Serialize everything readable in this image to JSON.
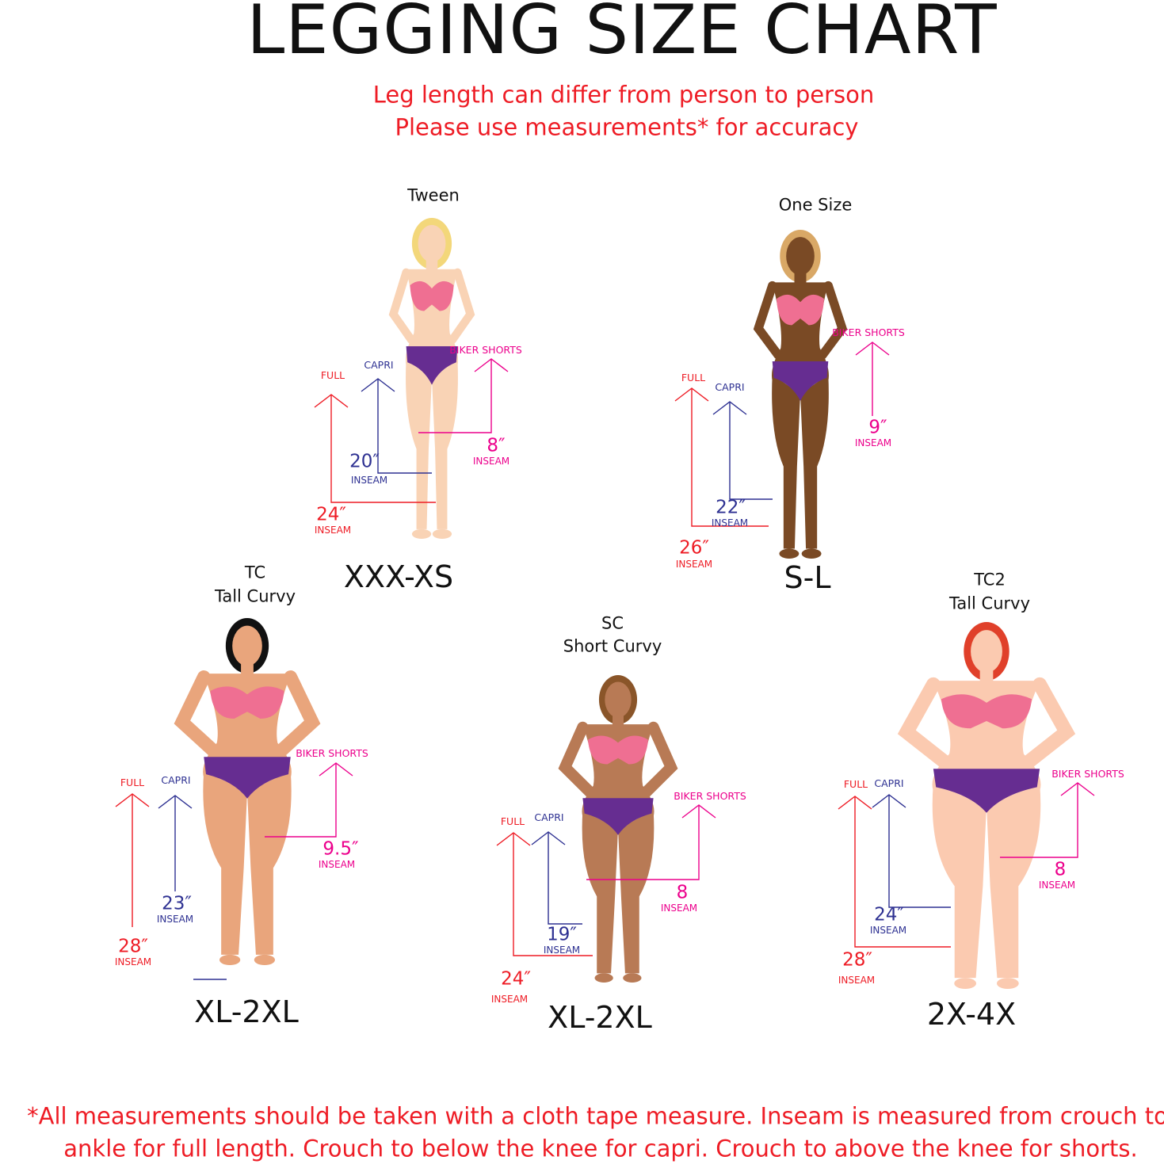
{
  "title": "LEGGING  SIZE CHART",
  "subtitle": [
    "Leg length can differ from person to person",
    "Please use measurements* for accuracy"
  ],
  "footnote": [
    "*All measurements should be taken with a cloth tape measure. Inseam is measured from crouch to",
    "ankle for full length. Crouch to below the knee for capri. Crouch to above the knee for shorts."
  ],
  "colors": {
    "full": "#ee1c25",
    "capri": "#2e3192",
    "shorts": "#ec008c",
    "bra": "#ef6f92",
    "briefs": "#662d91"
  },
  "panels": [
    {
      "title": [
        "Tween"
      ],
      "size": "XXX-XS",
      "skin": "#f9d3b5",
      "hair": "#f3d77a",
      "full": {
        "label": "FULL",
        "value": "24″",
        "unit": "INSEAM"
      },
      "capri": {
        "label": "CAPRI",
        "value": "20″",
        "unit": "INSEAM"
      },
      "shorts": {
        "label": "BIKER SHORTS",
        "value": "8″",
        "unit": "INSEAM"
      }
    },
    {
      "title": [
        "One Size"
      ],
      "size": "S-L",
      "skin": "#7a4a25",
      "hair": "#d9a866",
      "full": {
        "label": "FULL",
        "value": "26″",
        "unit": "INSEAM"
      },
      "capri": {
        "label": "CAPRI",
        "value": "22″",
        "unit": "INSEAM"
      },
      "shorts": {
        "label": "BIKER SHORTS",
        "value": "9″",
        "unit": "INSEAM"
      }
    },
    {
      "title": [
        "TC",
        "Tall Curvy"
      ],
      "size": "XL-2XL",
      "skin": "#e9a57c",
      "hair": "#111111",
      "full": {
        "label": "FULL",
        "value": "28″",
        "unit": "INSEAM"
      },
      "capri": {
        "label": "CAPRI",
        "value": "23″",
        "unit": "INSEAM"
      },
      "shorts": {
        "label": "BIKER SHORTS",
        "value": "9.5″",
        "unit": "INSEAM"
      }
    },
    {
      "title": [
        "SC",
        "Short Curvy"
      ],
      "size": "XL-2XL",
      "skin": "#b87a55",
      "hair": "#8a5529",
      "full": {
        "label": "FULL",
        "value": "24″",
        "unit": "INSEAM"
      },
      "capri": {
        "label": "CAPRI",
        "value": "19″",
        "unit": "INSEAM"
      },
      "shorts": {
        "label": "BIKER SHORTS",
        "value": "8",
        "unit": "INSEAM"
      }
    },
    {
      "title": [
        "TC2",
        "Tall Curvy"
      ],
      "size": "2X-4X",
      "skin": "#fbcab0",
      "hair": "#e0402a",
      "full": {
        "label": "FULL",
        "value": "28″",
        "unit": "INSEAM"
      },
      "capri": {
        "label": "CAPRI",
        "value": "24″",
        "unit": "INSEAM"
      },
      "shorts": {
        "label": "BIKER SHORTS",
        "value": "8",
        "unit": "INSEAM"
      }
    }
  ]
}
